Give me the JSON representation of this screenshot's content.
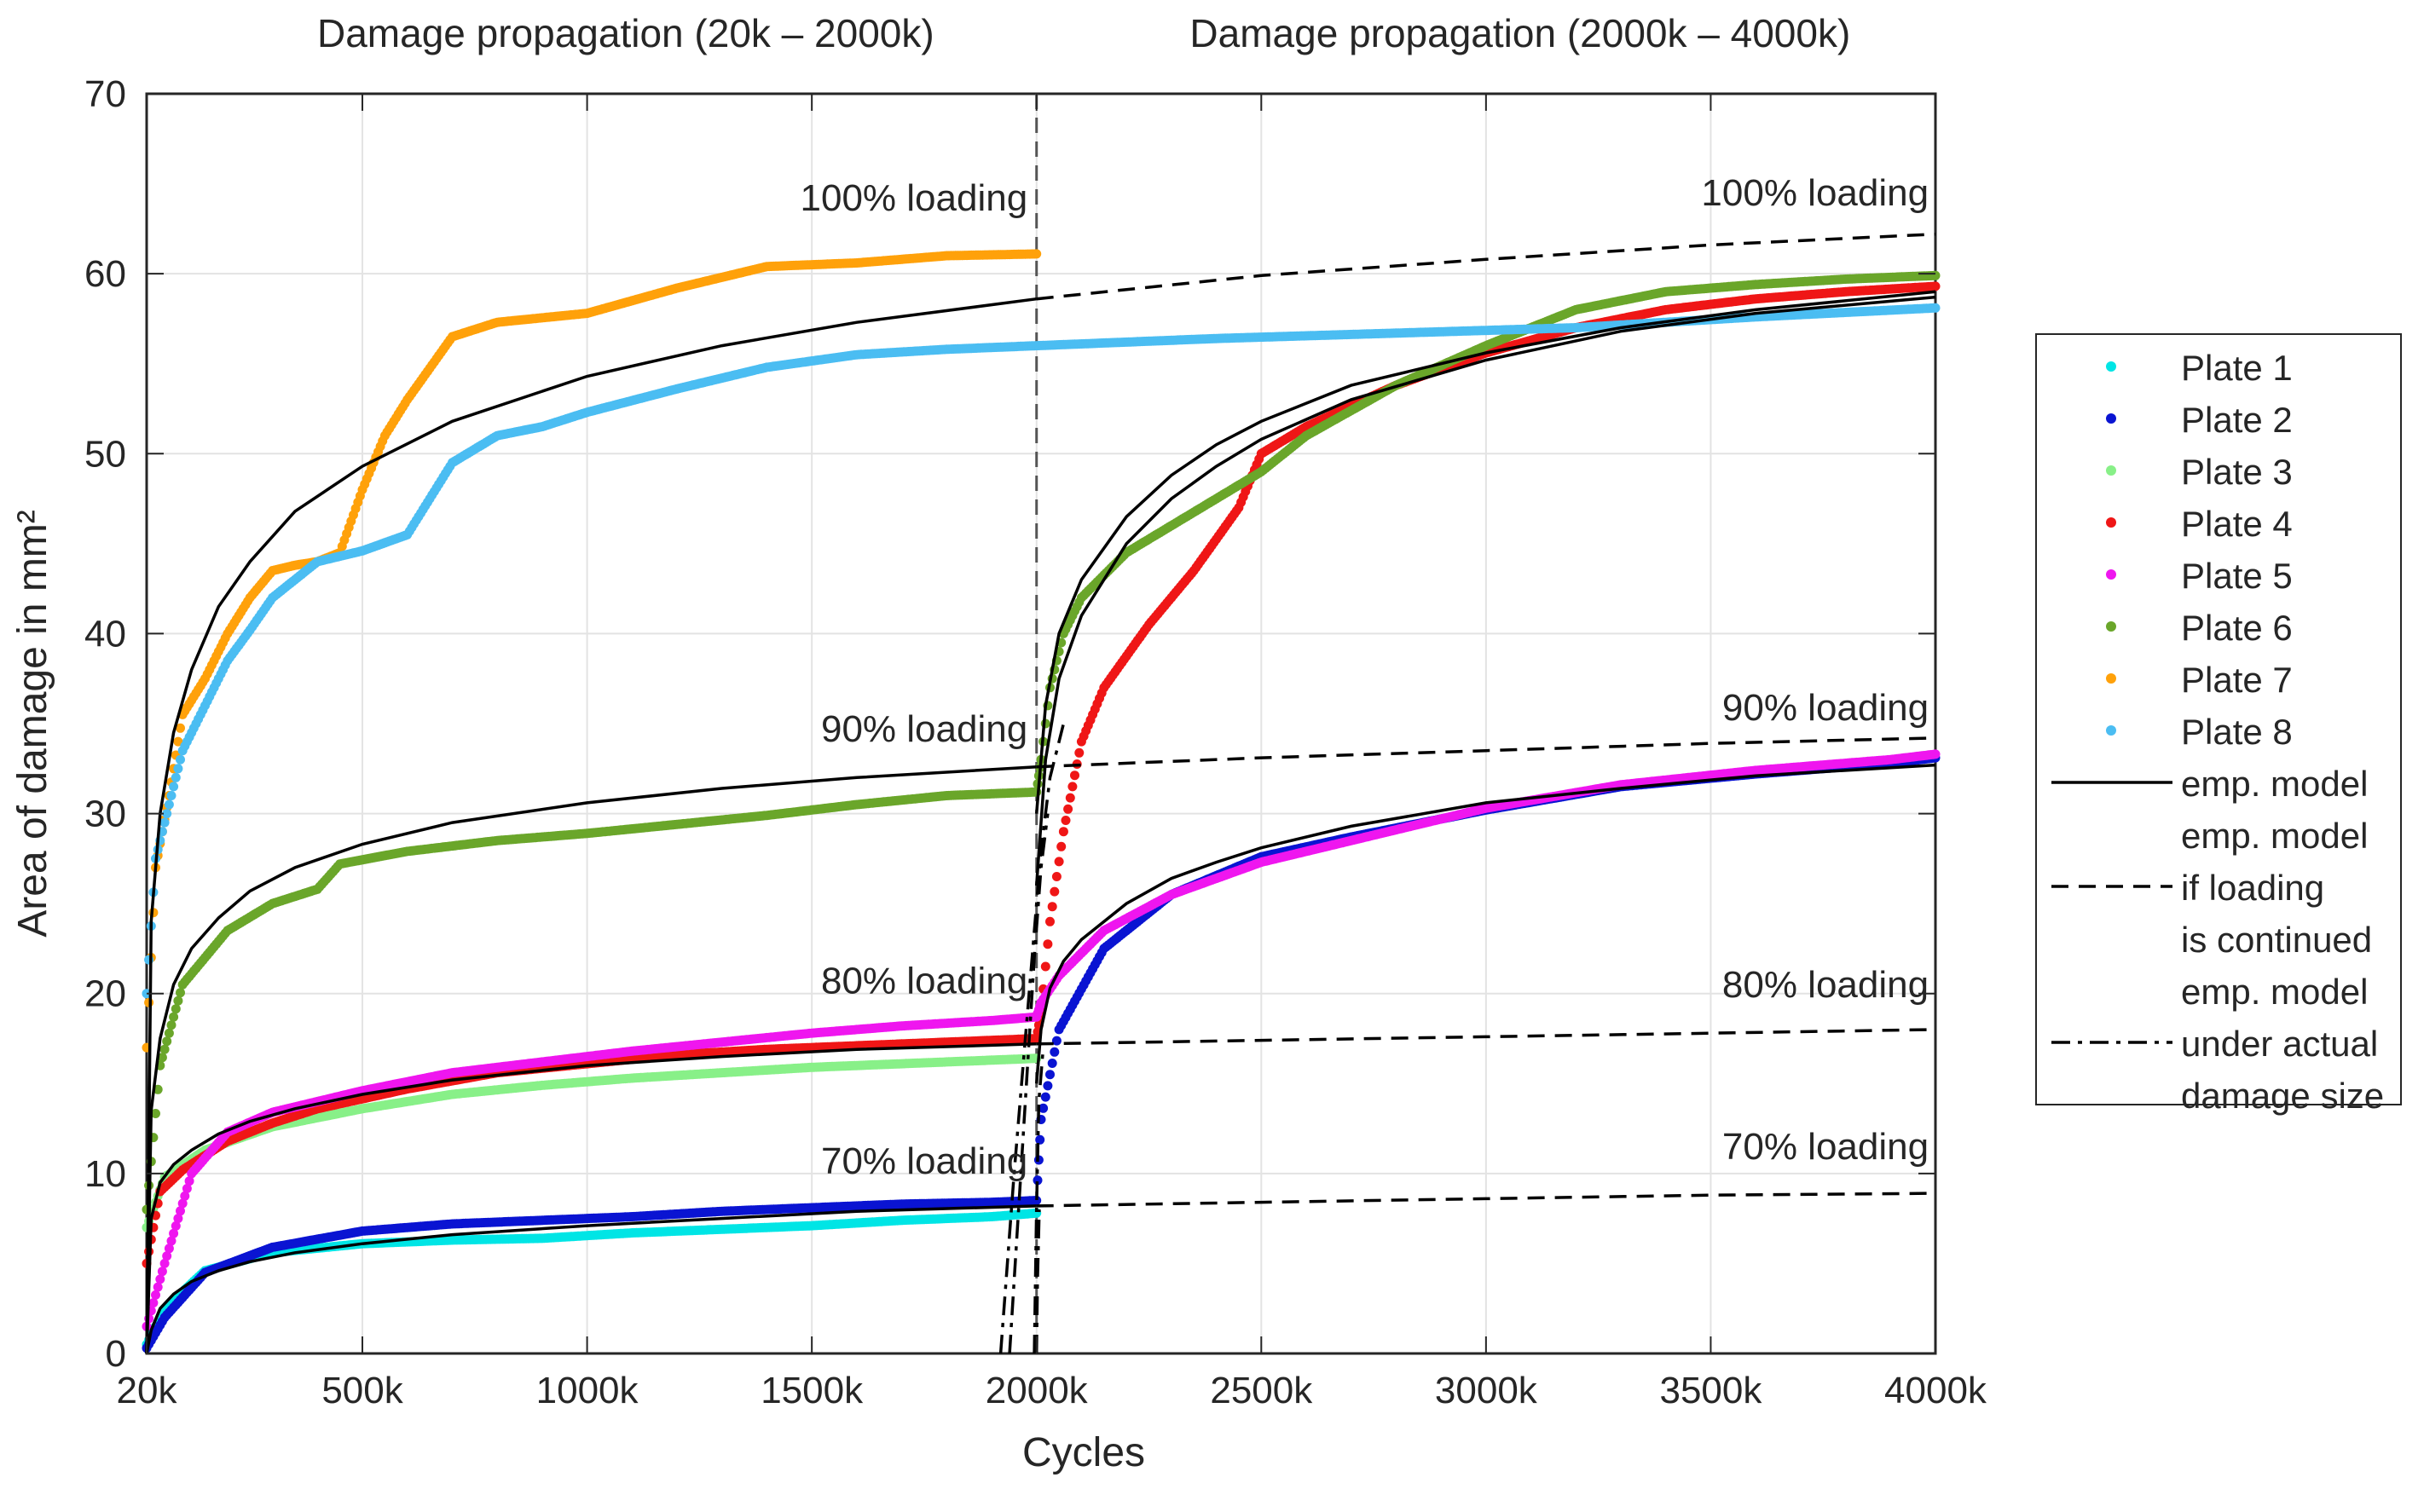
{
  "chart_data": {
    "type": "scatter",
    "section_titles": [
      "Damage propagation (20k – 2000k)",
      "Damage propagation (2000k – 4000k)"
    ],
    "xlabel": "Cycles",
    "ylabel": "Area of damage in mm²",
    "xlim": [
      20,
      4000
    ],
    "ylim": [
      0,
      70
    ],
    "x_ticks": [
      20,
      500,
      1000,
      1500,
      2000,
      2500,
      3000,
      3500,
      4000
    ],
    "x_tick_labels": [
      "20k",
      "500k",
      "1000k",
      "1500k",
      "2000k",
      "2500k",
      "3000k",
      "3500k",
      "4000k"
    ],
    "y_ticks": [
      0,
      10,
      20,
      30,
      40,
      50,
      60,
      70
    ],
    "y_tick_labels": [
      "0",
      "10",
      "20",
      "30",
      "40",
      "50",
      "60",
      "70"
    ],
    "x_unit_note": "thousand cycles",
    "grid": true,
    "legend_position": "right-outside",
    "annotations": [
      {
        "text": "100% loading",
        "x": 1980,
        "y": 63.5,
        "anchor": "end"
      },
      {
        "text": "90% loading",
        "x": 1980,
        "y": 34,
        "anchor": "end"
      },
      {
        "text": "80% loading",
        "x": 1980,
        "y": 20,
        "anchor": "end"
      },
      {
        "text": "70% loading",
        "x": 1980,
        "y": 10,
        "anchor": "end"
      },
      {
        "text": "100% loading",
        "x": 3985,
        "y": 63.8,
        "anchor": "end"
      },
      {
        "text": "90% loading",
        "x": 3985,
        "y": 35.2,
        "anchor": "end"
      },
      {
        "text": "80% loading",
        "x": 3985,
        "y": 19.8,
        "anchor": "end"
      },
      {
        "text": "70% loading",
        "x": 3985,
        "y": 10.8,
        "anchor": "end"
      }
    ],
    "series": [
      {
        "name": "Plate 1",
        "color": "#00e5e5",
        "kind": "points",
        "x": [
          20,
          60,
          150,
          300,
          500,
          700,
          900,
          1100,
          1300,
          1500,
          1700,
          1900,
          2000
        ],
        "y": [
          0.5,
          2.5,
          4.6,
          5.6,
          6.1,
          6.3,
          6.4,
          6.7,
          6.9,
          7.1,
          7.4,
          7.6,
          7.8
        ]
      },
      {
        "name": "Plate 2",
        "color": "#0a14d2",
        "kind": "points",
        "x": [
          20,
          60,
          150,
          300,
          500,
          700,
          900,
          1100,
          1300,
          1500,
          1700,
          1900,
          2000,
          2010,
          2050,
          2150,
          2300,
          2500,
          2700,
          3000,
          3300,
          3600,
          3900,
          4000
        ],
        "y": [
          0.3,
          2.0,
          4.5,
          5.9,
          6.8,
          7.2,
          7.4,
          7.6,
          7.9,
          8.1,
          8.3,
          8.4,
          8.5,
          13,
          18,
          22.5,
          25.5,
          27.6,
          28.7,
          30.2,
          31.5,
          32.2,
          32.8,
          33.1
        ]
      },
      {
        "name": "Plate 3",
        "color": "#88f088",
        "kind": "points",
        "x": [
          20,
          60,
          150,
          300,
          500,
          700,
          900,
          1100,
          1300,
          1500,
          1700,
          1900,
          2000
        ],
        "y": [
          7,
          9.8,
          11.3,
          12.6,
          13.6,
          14.4,
          14.9,
          15.3,
          15.6,
          15.9,
          16.1,
          16.3,
          16.4
        ]
      },
      {
        "name": "Plate 4",
        "color": "#ef1616",
        "kind": "points",
        "x": [
          20,
          50,
          100,
          200,
          300,
          400,
          600,
          800,
          1000,
          1200,
          1400,
          1600,
          1800,
          2000,
          2010,
          2030,
          2060,
          2100,
          2150,
          2250,
          2350,
          2450,
          2500,
          2600,
          2800,
          3000,
          3200,
          3400,
          3600,
          3800,
          4000
        ],
        "y": [
          5,
          9,
          10.2,
          11.8,
          12.8,
          13.6,
          14.7,
          15.6,
          16.1,
          16.6,
          16.9,
          17.1,
          17.3,
          17.5,
          19,
          24,
          29,
          34,
          37,
          40.5,
          43.5,
          47,
          50,
          51.5,
          53.8,
          55.6,
          57,
          58,
          58.6,
          59,
          59.3
        ]
      },
      {
        "name": "Plate 5",
        "color": "#ef16ef",
        "kind": "points",
        "x": [
          20,
          60,
          120,
          200,
          300,
          500,
          700,
          900,
          1100,
          1300,
          1500,
          1700,
          1900,
          2000,
          2010,
          2050,
          2150,
          2300,
          2500,
          2700,
          3000,
          3300,
          3600,
          3900,
          4000
        ],
        "y": [
          1.5,
          5,
          10,
          12.3,
          13.4,
          14.6,
          15.6,
          16.2,
          16.8,
          17.3,
          17.8,
          18.2,
          18.5,
          18.7,
          19.5,
          21,
          23.5,
          25.5,
          27.3,
          28.5,
          30.3,
          31.6,
          32.4,
          33,
          33.3
        ]
      },
      {
        "name": "Plate 6",
        "color": "#6aa62a",
        "kind": "points",
        "x": [
          20,
          50,
          100,
          200,
          300,
          400,
          450,
          600,
          800,
          1000,
          1200,
          1400,
          1600,
          1800,
          2000,
          2010,
          2030,
          2060,
          2100,
          2200,
          2300,
          2400,
          2500,
          2600,
          2800,
          3000,
          3200,
          3400,
          3600,
          3800,
          4000
        ],
        "y": [
          8,
          16,
          20.5,
          23.5,
          25,
          25.8,
          27.2,
          27.9,
          28.5,
          28.9,
          29.4,
          29.9,
          30.5,
          31,
          31.2,
          33,
          37,
          40,
          42,
          44.5,
          46,
          47.5,
          49,
          51,
          53.8,
          56,
          58,
          59,
          59.4,
          59.7,
          59.9
        ]
      },
      {
        "name": "Plate 7",
        "color": "#ffa10a",
        "kind": "points",
        "x": [
          20,
          40,
          70,
          100,
          150,
          200,
          250,
          300,
          350,
          400,
          450,
          500,
          550,
          600,
          700,
          800,
          1000,
          1200,
          1400,
          1600,
          1800,
          2000
        ],
        "y": [
          17,
          27,
          31,
          35.5,
          37.5,
          40,
          42,
          43.5,
          43.8,
          44,
          44.5,
          48,
          51,
          53,
          56.5,
          57.3,
          57.8,
          59.2,
          60.4,
          60.6,
          61,
          61.1
        ]
      },
      {
        "name": "Plate 8",
        "color": "#4bbdf2",
        "kind": "points",
        "x": [
          20,
          40,
          70,
          100,
          150,
          200,
          250,
          300,
          400,
          500,
          600,
          650,
          700,
          800,
          900,
          1000,
          1200,
          1400,
          1600,
          1800,
          2000,
          2400,
          2800,
          3200,
          3600,
          4000
        ],
        "y": [
          20,
          27.5,
          30.5,
          33.5,
          36,
          38.5,
          40.2,
          42,
          44,
          44.6,
          45.5,
          47.5,
          49.5,
          51,
          51.5,
          52.3,
          53.6,
          54.8,
          55.5,
          55.8,
          56,
          56.4,
          56.7,
          57,
          57.6,
          58.1
        ]
      },
      {
        "name": "emp. model",
        "color": "#000000",
        "kind": "solid",
        "curves": [
          {
            "x": [
              20,
              30,
              50,
              80,
              120,
              180,
              250,
              350,
              500,
              700,
              1000,
              1300,
              1600,
              2000
            ],
            "y": [
              0,
              24,
              30,
              34.5,
              38,
              41.5,
              44,
              46.8,
              49.3,
              51.8,
              54.3,
              56,
              57.3,
              58.6
            ]
          },
          {
            "x": [
              20,
              30,
              50,
              80,
              120,
              180,
              250,
              350,
              500,
              700,
              1000,
              1300,
              1600,
              2000
            ],
            "y": [
              0,
              13.5,
              17.5,
              20.5,
              22.5,
              24.2,
              25.7,
              27,
              28.3,
              29.5,
              30.6,
              31.4,
              32,
              32.6
            ]
          },
          {
            "x": [
              20,
              30,
              50,
              80,
              120,
              180,
              250,
              350,
              500,
              700,
              1000,
              1300,
              1600,
              2000
            ],
            "y": [
              0,
              7.5,
              9.5,
              10.5,
              11.3,
              12.2,
              12.9,
              13.6,
              14.4,
              15.2,
              16,
              16.5,
              16.9,
              17.2
            ]
          },
          {
            "x": [
              20,
              30,
              50,
              80,
              120,
              180,
              250,
              350,
              500,
              700,
              1000,
              1300,
              1600,
              2000
            ],
            "y": [
              0,
              1.3,
              2.5,
              3.3,
              4,
              4.6,
              5.1,
              5.6,
              6.1,
              6.6,
              7.1,
              7.5,
              7.9,
              8.2
            ]
          },
          {
            "x": [
              2000,
              2020,
              2050,
              2100,
              2200,
              2300,
              2400,
              2500,
              2700,
              3000,
              3300,
              3600,
              4000
            ],
            "y": [
              30,
              36,
              40,
              43,
              46.5,
              48.8,
              50.5,
              51.8,
              53.8,
              55.6,
              57,
              58,
              59
            ]
          },
          {
            "x": [
              2000,
              2020,
              2050,
              2100,
              2200,
              2300,
              2400,
              2500,
              2700,
              3000,
              3300,
              3600,
              4000
            ],
            "y": [
              26,
              33,
              37.5,
              41,
              45,
              47.5,
              49.3,
              50.8,
              53,
              55.2,
              56.8,
              57.8,
              58.7
            ]
          },
          {
            "x": [
              2000,
              2010,
              2030,
              2060,
              2100,
              2200,
              2300,
              2400,
              2500,
              2700,
              3000,
              3300,
              3600,
              4000
            ],
            "y": [
              15,
              18,
              20.3,
              21.8,
              23,
              25,
              26.4,
              27.3,
              28.1,
              29.3,
              30.6,
              31.4,
              32.1,
              32.7
            ]
          }
        ]
      },
      {
        "name": "emp. model if loading is continued",
        "color": "#000000",
        "kind": "dashed",
        "curves": [
          {
            "x": [
              2000,
              2500,
              3000,
              3500,
              4000
            ],
            "y": [
              58.6,
              59.9,
              60.8,
              61.6,
              62.2
            ]
          },
          {
            "x": [
              2000,
              2500,
              3000,
              3500,
              4000
            ],
            "y": [
              32.6,
              33.1,
              33.5,
              33.9,
              34.2
            ]
          },
          {
            "x": [
              2000,
              2500,
              3000,
              3500,
              4000
            ],
            "y": [
              17.2,
              17.4,
              17.6,
              17.8,
              18
            ]
          },
          {
            "x": [
              2000,
              2500,
              3000,
              3500,
              4000
            ],
            "y": [
              8.2,
              8.4,
              8.6,
              8.8,
              8.9
            ]
          }
        ]
      },
      {
        "name": "emp. model under actual damage size",
        "color": "#000000",
        "kind": "dashdot",
        "curves": [
          {
            "x": [
              1920,
              1950,
              1990,
              2010,
              2030,
              2060
            ],
            "y": [
              0,
              10,
              22,
              28,
              32,
              35
            ]
          },
          {
            "x": [
              1940,
              1965,
              1995,
              2010,
              2025
            ],
            "y": [
              0,
              10,
              22,
              27,
              30
            ]
          },
          {
            "x": [
              1995,
              2000,
              2005,
              2015
            ],
            "y": [
              0,
              8,
              14,
              17
            ]
          },
          {
            "x": [
              2000,
              2002,
              2006
            ],
            "y": [
              0,
              4,
              8
            ]
          }
        ]
      }
    ],
    "legend": [
      {
        "marker": "dot",
        "color": "#00e5e5",
        "lines": [
          "Plate 1"
        ]
      },
      {
        "marker": "dot",
        "color": "#0a14d2",
        "lines": [
          "Plate 2"
        ]
      },
      {
        "marker": "dot",
        "color": "#88f088",
        "lines": [
          "Plate 3"
        ]
      },
      {
        "marker": "dot",
        "color": "#ef1616",
        "lines": [
          "Plate 4"
        ]
      },
      {
        "marker": "dot",
        "color": "#ef16ef",
        "lines": [
          "Plate 5"
        ]
      },
      {
        "marker": "dot",
        "color": "#6aa62a",
        "lines": [
          "Plate 6"
        ]
      },
      {
        "marker": "dot",
        "color": "#ffa10a",
        "lines": [
          "Plate 7"
        ]
      },
      {
        "marker": "dot",
        "color": "#4bbdf2",
        "lines": [
          "Plate 8"
        ]
      },
      {
        "marker": "solid",
        "color": "#000000",
        "lines": [
          "emp. model"
        ]
      },
      {
        "marker": "dashed",
        "color": "#000000",
        "lines": [
          "emp. model",
          "if loading",
          "is continued"
        ]
      },
      {
        "marker": "dashdot",
        "color": "#000000",
        "lines": [
          "emp. model",
          "under actual",
          "damage size"
        ]
      }
    ]
  }
}
